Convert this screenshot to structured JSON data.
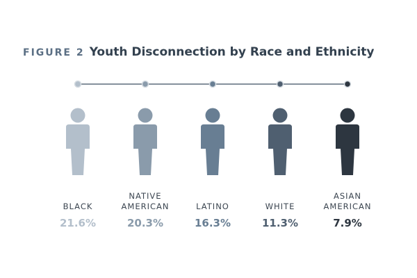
{
  "figure": {
    "label": "FIGURE 2",
    "title": "Youth Disconnection by Race and Ethnicity"
  },
  "chart_data": {
    "type": "pictograph",
    "title": "Youth Disconnection by Race and Ethnicity",
    "value_suffix": "%",
    "categories": [
      [
        "BLACK"
      ],
      [
        "NATIVE",
        "AMERICAN"
      ],
      [
        "LATINO"
      ],
      [
        "WHITE"
      ],
      [
        "ASIAN",
        "AMERICAN"
      ]
    ],
    "values": [
      21.6,
      20.3,
      16.3,
      11.3,
      7.9
    ],
    "value_labels": [
      "21.6%",
      "20.3%",
      "16.3%",
      "11.3%",
      "7.9%"
    ],
    "colors": [
      "#b3bfcb",
      "#8a9bab",
      "#687e93",
      "#4f5f70",
      "#2d3640"
    ],
    "value_colors": [
      "#b3bfcb",
      "#8a9bab",
      "#687e93",
      "#4f5f70",
      "#2d3640"
    ],
    "timeline_color": "#5d6c7b"
  }
}
